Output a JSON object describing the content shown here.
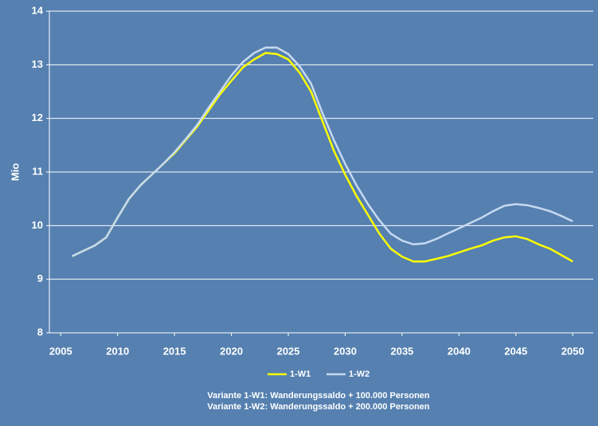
{
  "chart_data": {
    "type": "line",
    "y_label": "Mio",
    "x": [
      2006,
      2007,
      2008,
      2009,
      2010,
      2011,
      2012,
      2013,
      2014,
      2015,
      2016,
      2017,
      2018,
      2019,
      2020,
      2021,
      2022,
      2023,
      2024,
      2025,
      2026,
      2027,
      2028,
      2029,
      2030,
      2031,
      2032,
      2033,
      2034,
      2035,
      2036,
      2037,
      2038,
      2039,
      2040,
      2041,
      2042,
      2043,
      2044,
      2045,
      2046,
      2047,
      2048,
      2049,
      2050
    ],
    "series": [
      {
        "name": "1-W1",
        "color": "#ffff00",
        "values": [
          9.43,
          9.53,
          9.63,
          9.78,
          10.15,
          10.5,
          10.75,
          10.95,
          11.15,
          11.35,
          11.6,
          11.85,
          12.15,
          12.45,
          12.7,
          12.95,
          13.1,
          13.22,
          13.2,
          13.1,
          12.85,
          12.5,
          11.95,
          11.4,
          10.95,
          10.55,
          10.2,
          9.85,
          9.57,
          9.42,
          9.33,
          9.33,
          9.38,
          9.43,
          9.5,
          9.57,
          9.63,
          9.72,
          9.78,
          9.8,
          9.75,
          9.65,
          9.57,
          9.45,
          9.33
        ]
      },
      {
        "name": "1-W2",
        "color": "#c6d9f1",
        "values": [
          9.43,
          9.53,
          9.63,
          9.78,
          10.15,
          10.5,
          10.75,
          10.95,
          11.15,
          11.37,
          11.62,
          11.88,
          12.2,
          12.5,
          12.8,
          13.05,
          13.22,
          13.32,
          13.32,
          13.2,
          12.97,
          12.65,
          12.1,
          11.6,
          11.15,
          10.75,
          10.4,
          10.1,
          9.85,
          9.72,
          9.65,
          9.67,
          9.75,
          9.85,
          9.95,
          10.05,
          10.15,
          10.27,
          10.37,
          10.4,
          10.38,
          10.33,
          10.27,
          10.18,
          10.08
        ]
      }
    ],
    "xlim": [
      2004,
      2051.8
    ],
    "xticks": [
      2005,
      2010,
      2015,
      2020,
      2025,
      2030,
      2035,
      2040,
      2045,
      2050
    ],
    "ylim": [
      8,
      14
    ],
    "yticks": [
      8,
      9,
      10,
      11,
      12,
      13,
      14
    ],
    "grid": true,
    "notes": [
      "Variante 1-W1: Wanderungssaldo + 100.000 Personen",
      "Variante 1-W2: Wanderungssaldo + 200.000 Personen"
    ]
  }
}
